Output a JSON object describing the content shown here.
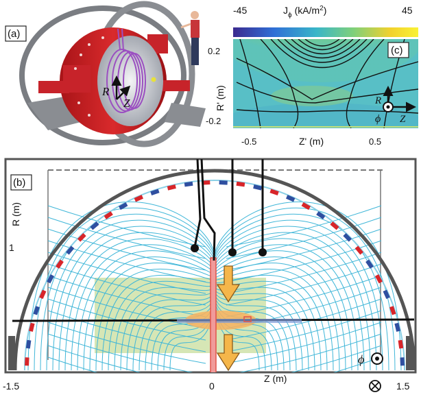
{
  "panel_a": {
    "label": "(a)",
    "axis_R": "R",
    "axis_Z": "Z"
  },
  "panel_c": {
    "label": "(c)",
    "colorbar": {
      "min_label": "-45",
      "max_label": "45",
      "quantity": "J",
      "subscript": "ϕ",
      "unit": "(kA/m",
      "unit_sup": "2",
      "unit_end": ")",
      "colors": [
        "#3b2a8f",
        "#2f6fd6",
        "#39b6c8",
        "#7fd07a",
        "#f2d12d",
        "#f9f236"
      ]
    },
    "y_tick_top": "0.2",
    "y_tick_bottom": "-0.2",
    "y_label": "R' (m)",
    "x_tick_left": "-0.5",
    "x_tick_right": "0.5",
    "x_label": "Z' (m)",
    "vec_R": "R",
    "vec_phi": "ϕ",
    "vec_Z": "Z"
  },
  "panel_b": {
    "label": "(b)",
    "y_label": "R (m)",
    "y_tick": "1",
    "x_tick_left": "-1.5",
    "x_tick_mid": "0",
    "x_tick_right": "1.5",
    "x_label": "Z (m)",
    "phi_symbol": "ϕ",
    "field_line_color": "#3fb6d8",
    "coil_red": "#d8252a",
    "coil_blue": "#2f4fa0",
    "arrow_color": "#f5b64a",
    "region_color": "#cfe2a8"
  }
}
